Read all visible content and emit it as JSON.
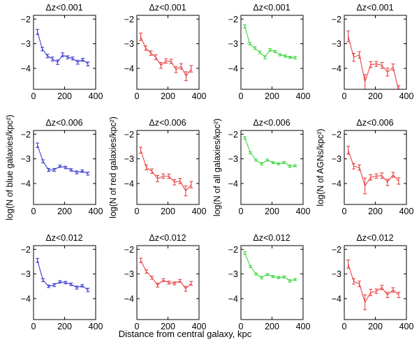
{
  "figure": {
    "xlabel": "Distance from central galaxy, kpc",
    "background": "#ffffff",
    "axis_color": "#000000"
  },
  "chart_data": [
    {
      "type": "line",
      "title": "Δz<0.001",
      "color": "#3c3cd0",
      "x": [
        25,
        57,
        90,
        122,
        155,
        187,
        220,
        252,
        285,
        317,
        350
      ],
      "y": [
        -2.52,
        -3.22,
        -3.5,
        -3.62,
        -3.75,
        -3.45,
        -3.55,
        -3.6,
        -3.75,
        -3.65,
        -3.82
      ],
      "yerr": [
        0.1,
        0.07,
        0.07,
        0.08,
        0.09,
        0.08,
        0.06,
        0.06,
        0.08,
        0.06,
        0.08
      ],
      "xlim": [
        0,
        400
      ],
      "ylim": [
        -4.85,
        -1.85
      ],
      "xticks": [
        0,
        200,
        400
      ],
      "yticks": [
        -2,
        -3,
        -4
      ]
    },
    {
      "type": "line",
      "title": "Δz<0.001",
      "color": "#e84343",
      "x": [
        25,
        57,
        90,
        122,
        155,
        187,
        220,
        252,
        285,
        317,
        350
      ],
      "y": [
        -2.72,
        -3.18,
        -3.38,
        -3.55,
        -3.88,
        -3.7,
        -3.72,
        -4.05,
        -3.92,
        -4.32,
        -4.02
      ],
      "yerr": [
        0.15,
        0.09,
        0.09,
        0.1,
        0.12,
        0.09,
        0.09,
        0.12,
        0.11,
        0.18,
        0.13
      ],
      "xlim": [
        0,
        400
      ],
      "ylim": [
        -4.85,
        -1.85
      ],
      "xticks": [
        0,
        200,
        400
      ],
      "yticks": [
        -2,
        -3,
        -4
      ]
    },
    {
      "type": "line",
      "title": "Δz<0.001",
      "color": "#3fd83f",
      "x": [
        25,
        57,
        90,
        122,
        155,
        187,
        220,
        252,
        285,
        317,
        350
      ],
      "y": [
        -2.3,
        -3.0,
        -3.18,
        -3.35,
        -3.55,
        -3.25,
        -3.32,
        -3.45,
        -3.5,
        -3.55,
        -3.57
      ],
      "yerr": [
        0.06,
        0.05,
        0.05,
        0.05,
        0.06,
        0.05,
        0.04,
        0.04,
        0.05,
        0.04,
        0.05
      ],
      "xlim": [
        0,
        400
      ],
      "ylim": [
        -4.85,
        -1.85
      ],
      "xticks": [
        0,
        200,
        400
      ],
      "yticks": [
        -2,
        -3,
        -4
      ]
    },
    {
      "type": "line",
      "title": "Δz<0.001",
      "color": "#e84343",
      "x": [
        25,
        61,
        97,
        133,
        170,
        206,
        242,
        278,
        314,
        350
      ],
      "y": [
        -2.7,
        -3.55,
        -3.45,
        -4.55,
        -3.85,
        -3.82,
        -3.88,
        -4.15,
        -3.95,
        -4.9
      ],
      "yerr": [
        0.22,
        0.16,
        0.13,
        0.3,
        0.12,
        0.1,
        0.12,
        0.16,
        0.13,
        0.2
      ],
      "xlim": [
        0,
        400
      ],
      "ylim": [
        -4.85,
        -1.85
      ],
      "xticks": [
        0,
        200,
        400
      ],
      "yticks": [
        -2,
        -3,
        -4
      ]
    },
    {
      "type": "line",
      "title": "Δz<0.006",
      "color": "#3c3cd0",
      "ylabel": "log(N of blue galaxies/kpc²)",
      "x": [
        25,
        61,
        97,
        133,
        170,
        206,
        242,
        278,
        314,
        350
      ],
      "y": [
        -2.45,
        -3.1,
        -3.45,
        -3.45,
        -3.3,
        -3.35,
        -3.45,
        -3.55,
        -3.5,
        -3.6
      ],
      "yerr": [
        0.09,
        0.06,
        0.06,
        0.06,
        0.05,
        0.05,
        0.05,
        0.06,
        0.05,
        0.06
      ],
      "xlim": [
        0,
        400
      ],
      "ylim": [
        -4.85,
        -1.85
      ],
      "xticks": [
        0,
        200,
        400
      ],
      "yticks": [
        -2,
        -3,
        -4
      ]
    },
    {
      "type": "line",
      "title": "Δz<0.006",
      "color": "#e84343",
      "ylabel": "log(N of red galaxies/kpc²)",
      "x": [
        25,
        61,
        97,
        133,
        170,
        206,
        242,
        278,
        314,
        350
      ],
      "y": [
        -2.65,
        -3.35,
        -3.5,
        -3.8,
        -3.7,
        -3.7,
        -3.95,
        -3.9,
        -4.3,
        -4.05
      ],
      "yerr": [
        0.12,
        0.1,
        0.09,
        0.13,
        0.09,
        0.09,
        0.11,
        0.11,
        0.2,
        0.13
      ],
      "xlim": [
        0,
        400
      ],
      "ylim": [
        -4.85,
        -1.85
      ],
      "xticks": [
        0,
        200,
        400
      ],
      "yticks": [
        -2,
        -3,
        -4
      ]
    },
    {
      "type": "line",
      "title": "Δz<0.006",
      "color": "#3fd83f",
      "ylabel": "log(N of all galaxies/kpc²)",
      "x": [
        25,
        61,
        97,
        133,
        170,
        206,
        242,
        278,
        314,
        350
      ],
      "y": [
        -2.15,
        -2.75,
        -3.05,
        -3.2,
        -3.05,
        -3.15,
        -3.2,
        -3.15,
        -3.3,
        -3.28
      ],
      "yerr": [
        0.05,
        0.04,
        0.04,
        0.05,
        0.04,
        0.04,
        0.04,
        0.04,
        0.05,
        0.04
      ],
      "xlim": [
        0,
        400
      ],
      "ylim": [
        -4.85,
        -1.85
      ],
      "xticks": [
        0,
        200,
        400
      ],
      "yticks": [
        -2,
        -3,
        -4
      ]
    },
    {
      "type": "line",
      "title": "Δz<0.006",
      "color": "#e84343",
      "ylabel": "log(N of AGNs/kpc²)",
      "x": [
        25,
        61,
        97,
        133,
        170,
        206,
        242,
        278,
        314,
        350
      ],
      "y": [
        -2.65,
        -3.3,
        -3.35,
        -4.1,
        -3.75,
        -3.7,
        -3.68,
        -3.95,
        -3.65,
        -3.9
      ],
      "yerr": [
        0.16,
        0.11,
        0.11,
        0.32,
        0.11,
        0.09,
        0.11,
        0.13,
        0.1,
        0.13
      ],
      "xlim": [
        0,
        400
      ],
      "ylim": [
        -4.85,
        -1.85
      ],
      "xticks": [
        0,
        200,
        400
      ],
      "yticks": [
        -2,
        -3,
        -4
      ]
    },
    {
      "type": "line",
      "title": "Δz<0.012",
      "color": "#3c3cd0",
      "x": [
        25,
        61,
        97,
        133,
        170,
        206,
        242,
        278,
        314,
        350
      ],
      "y": [
        -2.45,
        -3.25,
        -3.5,
        -3.45,
        -3.32,
        -3.35,
        -3.42,
        -3.55,
        -3.48,
        -3.65
      ],
      "yerr": [
        0.08,
        0.06,
        0.05,
        0.06,
        0.05,
        0.05,
        0.05,
        0.06,
        0.05,
        0.07
      ],
      "xlim": [
        0,
        400
      ],
      "ylim": [
        -4.85,
        -1.85
      ],
      "xticks": [
        0,
        200,
        400
      ],
      "yticks": [
        -2,
        -3,
        -4
      ]
    },
    {
      "type": "line",
      "title": "Δz<0.012",
      "color": "#e84343",
      "x": [
        25,
        61,
        97,
        133,
        170,
        206,
        242,
        278,
        314,
        350
      ],
      "y": [
        -2.45,
        -2.9,
        -3.15,
        -3.45,
        -3.25,
        -3.35,
        -3.38,
        -3.28,
        -3.6,
        -3.38
      ],
      "yerr": [
        0.09,
        0.07,
        0.06,
        0.08,
        0.06,
        0.06,
        0.06,
        0.06,
        0.1,
        0.08
      ],
      "xlim": [
        0,
        400
      ],
      "ylim": [
        -4.85,
        -1.85
      ],
      "xticks": [
        0,
        200,
        400
      ],
      "yticks": [
        -2,
        -3,
        -4
      ]
    },
    {
      "type": "line",
      "title": "Δz<0.012",
      "color": "#3fd83f",
      "x": [
        25,
        61,
        97,
        133,
        170,
        206,
        242,
        278,
        314,
        350
      ],
      "y": [
        -2.15,
        -2.7,
        -3.0,
        -3.15,
        -3.02,
        -3.1,
        -3.15,
        -3.12,
        -3.28,
        -3.22
      ],
      "yerr": [
        0.05,
        0.04,
        0.04,
        0.05,
        0.04,
        0.04,
        0.04,
        0.04,
        0.05,
        0.04
      ],
      "xlim": [
        0,
        400
      ],
      "ylim": [
        -4.85,
        -1.85
      ],
      "xticks": [
        0,
        200,
        400
      ],
      "yticks": [
        -2,
        -3,
        -4
      ]
    },
    {
      "type": "line",
      "title": "Δz<0.012",
      "color": "#e84343",
      "x": [
        25,
        61,
        97,
        133,
        170,
        206,
        242,
        278,
        314,
        350
      ],
      "y": [
        -2.6,
        -3.3,
        -3.4,
        -4.15,
        -3.75,
        -3.7,
        -3.55,
        -3.85,
        -3.65,
        -3.85
      ],
      "yerr": [
        0.17,
        0.11,
        0.11,
        0.3,
        0.13,
        0.09,
        0.09,
        0.11,
        0.09,
        0.11
      ],
      "xlim": [
        0,
        400
      ],
      "ylim": [
        -4.85,
        -1.85
      ],
      "xticks": [
        0,
        200,
        400
      ],
      "yticks": [
        -2,
        -3,
        -4
      ]
    }
  ]
}
